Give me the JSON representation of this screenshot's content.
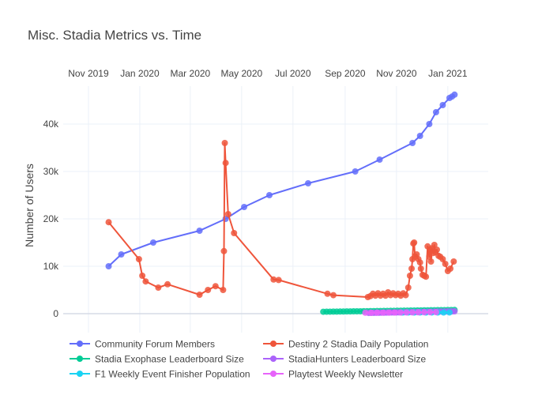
{
  "chart_data": {
    "type": "line",
    "title": "Misc. Stadia Metrics vs. Time",
    "ylabel": "Number of Users",
    "xlabel": "",
    "x_axis_position": "top",
    "x_range": [
      "2019-10-02",
      "2021-02-18"
    ],
    "xticks": [
      {
        "date": "2019-11-01",
        "label": "Nov 2019"
      },
      {
        "date": "2020-01-01",
        "label": "Jan 2020"
      },
      {
        "date": "2020-03-01",
        "label": "Mar 2020"
      },
      {
        "date": "2020-05-01",
        "label": "May 2020"
      },
      {
        "date": "2020-07-01",
        "label": "Jul 2020"
      },
      {
        "date": "2020-09-01",
        "label": "Sep 2020"
      },
      {
        "date": "2020-11-01",
        "label": "Nov 2020"
      },
      {
        "date": "2021-01-01",
        "label": "Jan 2021"
      }
    ],
    "ylim": [
      -4000,
      48000
    ],
    "yticks": [
      {
        "value": 0,
        "label": "0"
      },
      {
        "value": 10000,
        "label": "10k"
      },
      {
        "value": 20000,
        "label": "20k"
      },
      {
        "value": 30000,
        "label": "30k"
      },
      {
        "value": 40000,
        "label": "40k"
      }
    ],
    "grid": true,
    "legend_position": "bottom",
    "series": [
      {
        "name": "Community Forum Members",
        "color": "#636efa",
        "points": [
          [
            "2019-11-25",
            10000
          ],
          [
            "2019-12-10",
            12500
          ],
          [
            "2020-01-17",
            15000
          ],
          [
            "2020-03-12",
            17500
          ],
          [
            "2020-04-12",
            20000
          ],
          [
            "2020-05-04",
            22500
          ],
          [
            "2020-06-03",
            25000
          ],
          [
            "2020-07-19",
            27500
          ],
          [
            "2020-09-13",
            30000
          ],
          [
            "2020-10-12",
            32500
          ],
          [
            "2020-11-20",
            36000
          ],
          [
            "2020-11-29",
            37500
          ],
          [
            "2020-12-10",
            40000
          ],
          [
            "2020-12-18",
            42500
          ],
          [
            "2020-12-26",
            44000
          ],
          [
            "2021-01-03",
            45500
          ],
          [
            "2021-01-06",
            45800
          ],
          [
            "2021-01-09",
            46200
          ]
        ]
      },
      {
        "name": "Destiny 2 Stadia Daily Population",
        "color": "#ef553b",
        "points": [
          [
            "2019-11-25",
            19300
          ],
          [
            "2019-12-31",
            11500
          ],
          [
            "2020-01-04",
            8000
          ],
          [
            "2020-01-08",
            6800
          ],
          [
            "2020-01-23",
            5500
          ],
          [
            "2020-02-03",
            6200
          ],
          [
            "2020-03-12",
            4000
          ],
          [
            "2020-03-22",
            5000
          ],
          [
            "2020-03-31",
            5800
          ],
          [
            "2020-04-09",
            5000
          ],
          [
            "2020-04-10",
            13200
          ],
          [
            "2020-04-11",
            36000
          ],
          [
            "2020-04-12",
            31800
          ],
          [
            "2020-04-15",
            21000
          ],
          [
            "2020-04-22",
            17000
          ],
          [
            "2020-06-08",
            7200
          ],
          [
            "2020-06-14",
            7100
          ],
          [
            "2020-08-11",
            4200
          ],
          [
            "2020-08-18",
            3900
          ],
          [
            "2020-09-28",
            3500
          ],
          [
            "2020-10-01",
            3700
          ],
          [
            "2020-10-04",
            4200
          ],
          [
            "2020-10-07",
            3800
          ],
          [
            "2020-10-10",
            4300
          ],
          [
            "2020-10-13",
            3800
          ],
          [
            "2020-10-16",
            4200
          ],
          [
            "2020-10-19",
            3800
          ],
          [
            "2020-10-22",
            4500
          ],
          [
            "2020-10-25",
            3900
          ],
          [
            "2020-10-28",
            4300
          ],
          [
            "2020-10-31",
            3900
          ],
          [
            "2020-11-03",
            4200
          ],
          [
            "2020-11-06",
            3800
          ],
          [
            "2020-11-09",
            4300
          ],
          [
            "2020-11-12",
            3900
          ],
          [
            "2020-11-15",
            5500
          ],
          [
            "2020-11-17",
            8000
          ],
          [
            "2020-11-19",
            9500
          ],
          [
            "2020-11-20",
            11500
          ],
          [
            "2020-11-21",
            14800
          ],
          [
            "2020-11-22",
            15000
          ],
          [
            "2020-11-23",
            12000
          ],
          [
            "2020-11-25",
            12500
          ],
          [
            "2020-11-27",
            11500
          ],
          [
            "2020-11-29",
            10800
          ],
          [
            "2020-11-30",
            9500
          ],
          [
            "2020-12-02",
            8200
          ],
          [
            "2020-12-04",
            8000
          ],
          [
            "2020-12-06",
            7800
          ],
          [
            "2020-12-08",
            14200
          ],
          [
            "2020-12-10",
            12000
          ],
          [
            "2020-12-11",
            13500
          ],
          [
            "2020-12-12",
            11000
          ],
          [
            "2020-12-13",
            13800
          ],
          [
            "2020-12-15",
            12800
          ],
          [
            "2020-12-16",
            14500
          ],
          [
            "2020-12-17",
            13000
          ],
          [
            "2020-12-19",
            13500
          ],
          [
            "2020-12-21",
            12200
          ],
          [
            "2020-12-23",
            12000
          ],
          [
            "2020-12-26",
            11500
          ],
          [
            "2020-12-29",
            10500
          ],
          [
            "2021-01-01",
            9000
          ],
          [
            "2021-01-04",
            9500
          ],
          [
            "2021-01-08",
            11000
          ]
        ]
      },
      {
        "name": "Stadia Exophase Leaderboard Size",
        "color": "#00cc96",
        "points": [
          [
            "2020-08-06",
            400
          ],
          [
            "2020-08-10",
            410
          ],
          [
            "2020-08-14",
            420
          ],
          [
            "2020-08-18",
            430
          ],
          [
            "2020-08-22",
            440
          ],
          [
            "2020-08-26",
            450
          ],
          [
            "2020-08-30",
            460
          ],
          [
            "2020-09-03",
            470
          ],
          [
            "2020-09-07",
            480
          ],
          [
            "2020-09-11",
            490
          ],
          [
            "2020-09-15",
            500
          ],
          [
            "2020-09-19",
            510
          ],
          [
            "2020-09-23",
            520
          ],
          [
            "2020-09-27",
            530
          ],
          [
            "2020-10-01",
            540
          ],
          [
            "2020-10-05",
            550
          ],
          [
            "2020-10-09",
            560
          ],
          [
            "2020-10-13",
            570
          ],
          [
            "2020-10-17",
            580
          ],
          [
            "2020-10-21",
            590
          ],
          [
            "2020-10-25",
            600
          ],
          [
            "2020-10-29",
            610
          ],
          [
            "2020-11-02",
            620
          ],
          [
            "2020-11-06",
            630
          ],
          [
            "2020-11-10",
            640
          ],
          [
            "2020-11-14",
            650
          ],
          [
            "2020-11-18",
            660
          ],
          [
            "2020-11-22",
            670
          ],
          [
            "2020-11-26",
            680
          ],
          [
            "2020-11-30",
            690
          ],
          [
            "2020-12-04",
            700
          ],
          [
            "2020-12-08",
            710
          ],
          [
            "2020-12-12",
            720
          ],
          [
            "2020-12-16",
            730
          ],
          [
            "2020-12-20",
            740
          ],
          [
            "2020-12-24",
            750
          ],
          [
            "2020-12-28",
            760
          ],
          [
            "2021-01-01",
            770
          ],
          [
            "2021-01-05",
            780
          ],
          [
            "2021-01-09",
            790
          ]
        ]
      },
      {
        "name": "StadiaHunters Leaderboard Size",
        "color": "#ab63fa",
        "points": [
          [
            "2020-09-29",
            150
          ],
          [
            "2020-10-02",
            160
          ],
          [
            "2020-10-05",
            170
          ],
          [
            "2020-10-08",
            180
          ],
          [
            "2020-10-11",
            190
          ],
          [
            "2020-10-14",
            200
          ],
          [
            "2020-10-17",
            210
          ],
          [
            "2020-10-20",
            220
          ],
          [
            "2020-10-23",
            230
          ],
          [
            "2020-10-26",
            240
          ],
          [
            "2020-10-29",
            250
          ],
          [
            "2020-11-01",
            260
          ],
          [
            "2020-11-04",
            270
          ],
          [
            "2020-11-07",
            280
          ],
          [
            "2020-11-10",
            290
          ],
          [
            "2020-11-13",
            300
          ],
          [
            "2020-11-16",
            310
          ],
          [
            "2020-11-19",
            320
          ],
          [
            "2020-11-22",
            330
          ],
          [
            "2020-11-25",
            340
          ],
          [
            "2020-11-28",
            350
          ],
          [
            "2020-12-01",
            360
          ],
          [
            "2020-12-04",
            370
          ],
          [
            "2020-12-07",
            380
          ],
          [
            "2020-12-10",
            390
          ],
          [
            "2020-12-13",
            400
          ],
          [
            "2020-12-16",
            410
          ],
          [
            "2020-12-19",
            420
          ],
          [
            "2020-12-22",
            430
          ],
          [
            "2020-12-25",
            440
          ],
          [
            "2020-12-28",
            450
          ],
          [
            "2020-12-31",
            460
          ],
          [
            "2021-01-03",
            470
          ],
          [
            "2021-01-06",
            480
          ],
          [
            "2021-01-09",
            490
          ]
        ]
      },
      {
        "name": "F1 Weekly Event Finisher Population",
        "color": "#19d3f3",
        "points": [
          [
            "2020-11-08",
            250
          ],
          [
            "2020-11-15",
            260
          ],
          [
            "2020-11-22",
            240
          ],
          [
            "2020-11-29",
            255
          ],
          [
            "2020-12-06",
            245
          ],
          [
            "2020-12-13",
            260
          ],
          [
            "2020-12-20",
            250
          ],
          [
            "2020-12-27",
            240
          ],
          [
            "2021-01-03",
            255
          ]
        ]
      },
      {
        "name": "Playtest Weekly Newsletter",
        "color": "#e763fa",
        "points": [
          [
            "2020-09-25",
            200
          ],
          [
            "2020-10-02",
            210
          ],
          [
            "2020-10-09",
            220
          ],
          [
            "2020-10-16",
            230
          ],
          [
            "2020-10-23",
            240
          ],
          [
            "2020-10-30",
            250
          ],
          [
            "2020-11-06",
            260
          ],
          [
            "2020-11-13",
            270
          ],
          [
            "2020-11-20",
            280
          ],
          [
            "2020-11-27",
            290
          ],
          [
            "2020-12-04",
            300
          ],
          [
            "2020-12-11",
            310
          ],
          [
            "2020-12-18",
            320
          ]
        ]
      }
    ]
  }
}
